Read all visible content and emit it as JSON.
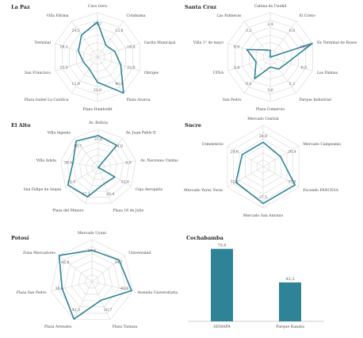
{
  "colors": {
    "series": "#2e8496",
    "grid": "#d6d6d6",
    "axis": "#999999",
    "label": "#444444"
  },
  "chart_data": [
    {
      "type": "radar",
      "title": "La Paz",
      "rmax": 40,
      "grid_levels": 6,
      "categories": [
        "Caro Gera",
        "Cotahuma",
        "Garita Municipal",
        "Obrajes",
        "Plaza Avaroa",
        "Plaza Humboldt",
        "Plaza Isabel La Católica",
        "San Francisco",
        "Terminal",
        "Villa Fátima"
      ],
      "values": [
        31.7,
        13.0,
        16.4,
        22.0,
        40.8,
        22.6,
        12.9,
        13.5,
        18.1,
        24.5
      ],
      "data_labels": [
        "31,7",
        "13,0",
        "16,4",
        "22,0",
        "40,8",
        "22,6",
        "12,9",
        "13,5",
        "18,1",
        "24,5"
      ]
    },
    {
      "type": "radar",
      "title": "Santa Cruz",
      "rmax": 16,
      "grid_levels": 6,
      "categories": [
        "Cabina de Unidid",
        "El Cristo",
        "Ex Terminal de Buses",
        "Las Palmas",
        "Parque Industrial",
        "Plaza Comercio",
        "San Pedro",
        "UPSA",
        "Villa 1° de mayo",
        "Las Palmeras"
      ],
      "values": [
        2.4,
        0.0,
        15.9,
        6.5,
        5.3,
        3.6,
        9.6,
        5.4,
        8.9,
        3.2
      ],
      "data_labels": [
        "2,4",
        "0,0",
        "15,9",
        "6,5",
        "5,3",
        "3,6",
        "9,6",
        "5,4",
        "8,9",
        "3,2"
      ]
    },
    {
      "type": "radar",
      "title": "El Alto",
      "rmax": 45,
      "grid_levels": 6,
      "categories": [
        "Av. Bolivia",
        "Av. Juan Pablo II",
        "Av. Naciones Unidas",
        "Ceja Aeropista",
        "Plaza 16 de Julio",
        "Plaza del Minero",
        "San Felipe de Seque",
        "Villa Adela",
        "Villa Ingenio"
      ],
      "values": [
        37.6,
        34.0,
        0.0,
        22.6,
        20.4,
        37.1,
        41.5,
        30.5,
        40.7
      ],
      "data_labels": [
        "37,6",
        "34,0",
        "0,0",
        "22,6",
        "20,4",
        "37,1",
        "41,5",
        "30,5",
        "40,7"
      ]
    },
    {
      "type": "radar",
      "title": "Sucre",
      "rmax": 42,
      "grid_levels": 6,
      "categories": [
        "Mercado Central",
        "Mercado Campesino",
        "Facundo PANCESA",
        "Mercado San Antonio",
        "Mercado Yurac Yurac",
        "Cementerio"
      ],
      "values": [
        24.8,
        20.4,
        37.5,
        37.5,
        32.0,
        24.6
      ],
      "data_labels": [
        "24,8",
        "20,4",
        "37,5",
        "37,5",
        "32,0",
        "24,6"
      ]
    },
    {
      "type": "radar",
      "title": "Potosí",
      "rmax": 42,
      "grid_levels": 6,
      "categories": [
        "Mercado Uyuni",
        "Universidad",
        "Avenida Universitaria",
        "Plaza Tomasa",
        "Plaza Arenales",
        "Plaza San Pedro",
        "Zona Mercadores"
      ],
      "values": [
        31.4,
        34.7,
        40.6,
        20.7,
        41.5,
        30.6,
        42.8
      ],
      "data_labels": [
        "31,4",
        "34,7",
        "40,6",
        "20,7",
        "41,5",
        "30,6",
        "42,8"
      ]
    },
    {
      "type": "bar",
      "title": "Cochabamba",
      "ylim": [
        0,
        80
      ],
      "categories": [
        "SEMAPA",
        "Parque Kanata"
      ],
      "values": [
        78.6,
        42.2
      ],
      "data_labels": [
        "78,6",
        "42,2"
      ]
    }
  ]
}
